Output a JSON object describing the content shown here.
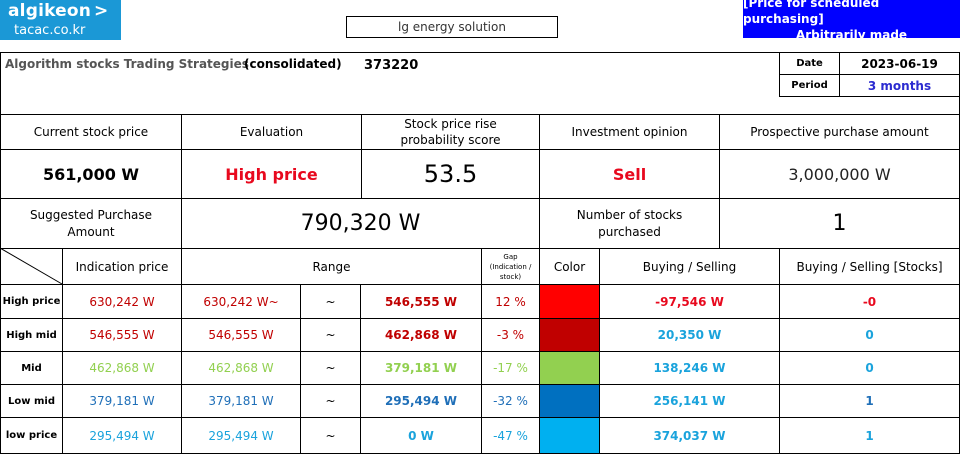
{
  "logo": {
    "name": "algikeon",
    "domain": "tacac.co.kr"
  },
  "search": {
    "value": "lg energy solution"
  },
  "banner": {
    "line1": "[Price for scheduled purchasing]",
    "line2": "Arbitrarily made"
  },
  "header": {
    "title": "Algorithm stocks Trading Strategies",
    "subtitle": "(consolidated)",
    "code": "373220",
    "date_label": "Date",
    "date_value": "2023-06-19",
    "period_label": "Period",
    "period_value": "3 months"
  },
  "summary": {
    "current_price_label": "Current stock price",
    "evaluation_label": "Evaluation",
    "probability_label": "Stock price rise probability score",
    "opinion_label": "Investment opinion",
    "prospective_label": "Prospective purchase amount",
    "current_price": "561,000 W",
    "evaluation": "High price",
    "probability": "53.5",
    "opinion": "Sell",
    "prospective": "3,000,000 W",
    "suggested_label": "Suggested Purchase Amount",
    "suggested_value": "790,320 W",
    "stocks_label": "Number of stocks purchased",
    "stocks_value": "1"
  },
  "table": {
    "headers": {
      "indication": "Indication price",
      "range": "Range",
      "gap": "Gap (Indication / stock)",
      "color": "Color",
      "buy_sell": "Buying / Selling",
      "buy_sell_stocks": "Buying / Selling [Stocks]"
    },
    "rows": [
      {
        "label": "High price",
        "indication": "630,242 W",
        "range_from": "630,242 W~",
        "tilde": "~",
        "range_to": "546,555 W",
        "gap": "12 %",
        "color": "#ff0000",
        "amount": "-97,546 W",
        "stocks": "-0"
      },
      {
        "label": "High mid",
        "indication": "546,555 W",
        "range_from": "546,555 W",
        "tilde": "~",
        "range_to": "462,868 W",
        "gap": "-3 %",
        "color": "#c00000",
        "amount": "20,350 W",
        "stocks": "0"
      },
      {
        "label": "Mid",
        "indication": "462,868 W",
        "range_from": "462,868 W",
        "tilde": "~",
        "range_to": "379,181 W",
        "gap": "-17 %",
        "color": "#92d050",
        "amount": "138,246 W",
        "stocks": "0"
      },
      {
        "label": "Low mid",
        "indication": "379,181 W",
        "range_from": "379,181 W",
        "tilde": "~",
        "range_to": "295,494 W",
        "gap": "-32 %",
        "color": "#0070c0",
        "amount": "256,141 W",
        "stocks": "1"
      },
      {
        "label": "low price",
        "indication": "295,494 W",
        "range_from": "295,494 W",
        "tilde": "~",
        "range_to": "0 W",
        "gap": "-47 %",
        "color": "#00b0f0",
        "amount": "374,037 W",
        "stocks": "1"
      }
    ]
  }
}
